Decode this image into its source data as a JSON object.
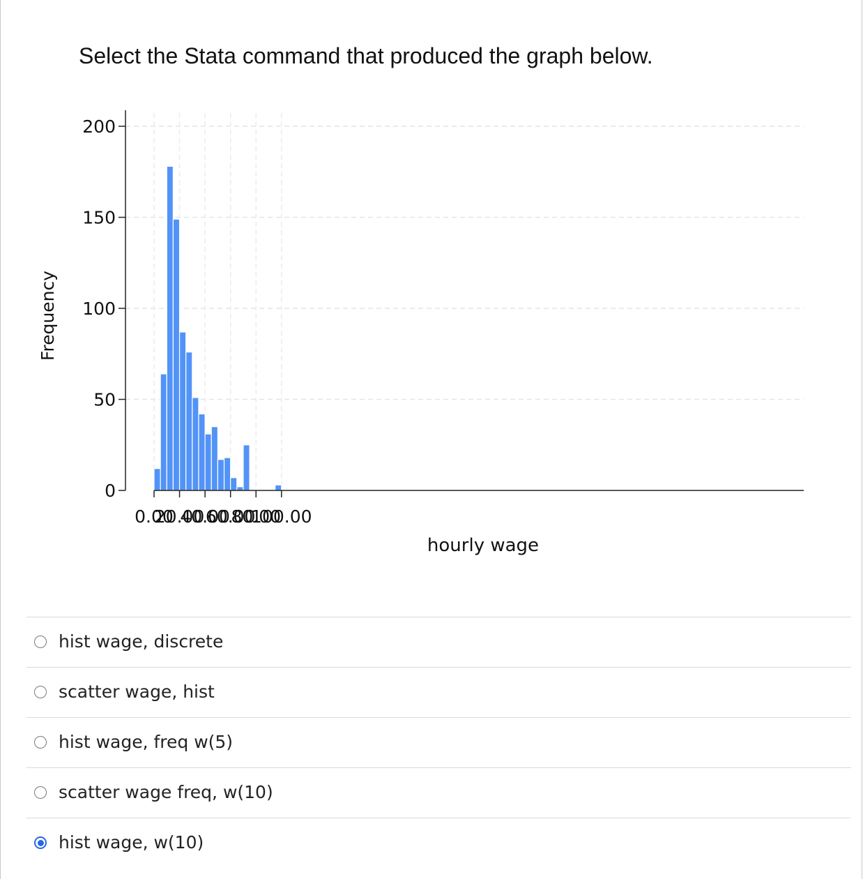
{
  "question": "Select the Stata command that produced the graph below.",
  "chart_data": {
    "type": "bar",
    "histogram": true,
    "bin_width": 5,
    "bins": [
      {
        "start": 0,
        "value": 12
      },
      {
        "start": 5,
        "value": 64
      },
      {
        "start": 10,
        "value": 178
      },
      {
        "start": 15,
        "value": 149
      },
      {
        "start": 20,
        "value": 87
      },
      {
        "start": 25,
        "value": 76
      },
      {
        "start": 30,
        "value": 51
      },
      {
        "start": 35,
        "value": 42
      },
      {
        "start": 40,
        "value": 31
      },
      {
        "start": 45,
        "value": 35
      },
      {
        "start": 50,
        "value": 17
      },
      {
        "start": 55,
        "value": 18
      },
      {
        "start": 60,
        "value": 7
      },
      {
        "start": 65,
        "value": 2
      },
      {
        "start": 70,
        "value": 25
      },
      {
        "start": 75,
        "value": 0
      },
      {
        "start": 80,
        "value": 0
      },
      {
        "start": 85,
        "value": 0
      },
      {
        "start": 90,
        "value": 0
      },
      {
        "start": 95,
        "value": 3
      }
    ],
    "xlabel": "hourly wage",
    "ylabel": "Frequency",
    "xticks": [
      "0.00",
      "20.00",
      "40.00",
      "60.00",
      "80.00",
      "100.00"
    ],
    "yticks": [
      "0",
      "50",
      "100",
      "150",
      "200"
    ],
    "xlim": [
      0,
      100
    ],
    "ylim": [
      0,
      200
    ],
    "grid": true,
    "bar_color": "#5293f7"
  },
  "options": [
    {
      "label": "hist wage, discrete",
      "selected": false
    },
    {
      "label": "scatter wage, hist",
      "selected": false
    },
    {
      "label": "hist wage, freq w(5)",
      "selected": false
    },
    {
      "label": "scatter wage freq, w(10)",
      "selected": false
    },
    {
      "label": "hist wage, w(10)",
      "selected": true
    }
  ],
  "accent_color": "#2668e0"
}
